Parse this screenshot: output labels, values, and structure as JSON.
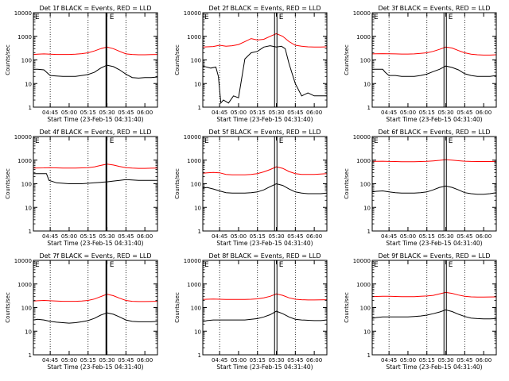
{
  "colors": {
    "events": "#000000",
    "lld": "#ff0000",
    "axes": "#000000",
    "background": "#ffffff"
  },
  "shared": {
    "ylabel": "Counts/sec",
    "xlabel": "Start Time (23-Feb-15 04:31:40)",
    "x_tick_labels": [
      "04:45",
      "05:00",
      "05:15",
      "05:30",
      "05:45",
      "06:00"
    ],
    "x_tick_minutes": [
      45,
      60,
      75,
      90,
      105,
      120
    ],
    "x_range_minutes": [
      31.67,
      130
    ],
    "y_tick_labels": [
      "1",
      "10",
      "100",
      "1000",
      "10000"
    ],
    "y_range": [
      1,
      10000
    ],
    "y_scale": "log",
    "vertical_dotted_lines_minutes": [
      45,
      75,
      105
    ],
    "corner_marker_left": "E",
    "corner_marker_right": "E"
  },
  "chart_data": [
    {
      "type": "line",
      "title": "Det 1f BLACK = Events, RED = LLD",
      "ylim": [
        1,
        10000
      ],
      "yscale": "log",
      "vlines": [
        {
          "x": 89.5,
          "style": "solid-thick"
        }
      ],
      "series": [
        {
          "name": "Events",
          "color": "#000000",
          "x": [
            31.7,
            35,
            40,
            45,
            50,
            55,
            60,
            65,
            70,
            75,
            80,
            85,
            90,
            95,
            100,
            105,
            110,
            115,
            120,
            125,
            130
          ],
          "values": [
            40,
            40,
            38,
            22,
            21,
            20,
            20,
            20,
            22,
            24,
            30,
            45,
            60,
            52,
            38,
            25,
            18,
            17,
            18,
            18,
            19
          ]
        },
        {
          "name": "LLD",
          "color": "#ff0000",
          "x": [
            31.7,
            35,
            40,
            45,
            50,
            55,
            60,
            65,
            70,
            75,
            80,
            85,
            90,
            95,
            100,
            105,
            110,
            115,
            120,
            125,
            130
          ],
          "values": [
            170,
            175,
            180,
            175,
            170,
            170,
            170,
            175,
            185,
            200,
            240,
            300,
            350,
            300,
            230,
            180,
            170,
            165,
            165,
            168,
            170
          ]
        }
      ]
    },
    {
      "type": "line",
      "title": "Det 2f BLACK = Events, RED = LLD",
      "ylim": [
        1,
        10000
      ],
      "yscale": "log",
      "vlines": [
        {
          "x": 89.5,
          "style": "double"
        }
      ],
      "series": [
        {
          "name": "Events",
          "color": "#000000",
          "x": [
            31.7,
            38,
            42,
            44,
            46,
            48,
            52,
            56,
            60,
            65,
            70,
            75,
            80,
            85,
            90,
            94,
            97,
            100,
            105,
            110,
            115,
            120,
            125,
            130
          ],
          "values": [
            55,
            45,
            50,
            20,
            1.5,
            2,
            1.5,
            3,
            2.5,
            110,
            200,
            230,
            350,
            400,
            350,
            380,
            300,
            70,
            10,
            3,
            4,
            3,
            3,
            3
          ]
        },
        {
          "name": "LLD",
          "color": "#ff0000",
          "x": [
            31.7,
            35,
            40,
            45,
            50,
            55,
            60,
            65,
            70,
            75,
            80,
            85,
            90,
            95,
            100,
            105,
            110,
            115,
            120,
            125,
            130
          ],
          "values": [
            350,
            360,
            370,
            420,
            380,
            400,
            450,
            600,
            800,
            700,
            750,
            1000,
            1300,
            1000,
            600,
            420,
            380,
            360,
            350,
            350,
            360
          ]
        }
      ]
    },
    {
      "type": "line",
      "title": "Det 3f BLACK = Events, RED = LLD",
      "ylim": [
        1,
        10000
      ],
      "yscale": "log",
      "vlines": [
        {
          "x": 89.5,
          "style": "double"
        }
      ],
      "series": [
        {
          "name": "Events",
          "color": "#000000",
          "x": [
            31.7,
            35,
            40,
            42,
            45,
            50,
            55,
            60,
            65,
            70,
            75,
            80,
            85,
            90,
            95,
            100,
            105,
            110,
            115,
            120,
            125,
            130
          ],
          "values": [
            40,
            40,
            40,
            30,
            22,
            22,
            20,
            20,
            20,
            22,
            25,
            32,
            40,
            55,
            48,
            38,
            26,
            22,
            20,
            20,
            20,
            22
          ]
        },
        {
          "name": "LLD",
          "color": "#ff0000",
          "x": [
            31.7,
            35,
            40,
            45,
            50,
            55,
            60,
            65,
            70,
            75,
            80,
            85,
            90,
            95,
            100,
            105,
            110,
            115,
            120,
            125,
            130
          ],
          "values": [
            180,
            182,
            185,
            182,
            180,
            178,
            178,
            180,
            190,
            200,
            230,
            280,
            350,
            320,
            250,
            200,
            175,
            165,
            160,
            160,
            165
          ]
        }
      ]
    },
    {
      "type": "line",
      "title": "Det 4f BLACK = Events, RED = LLD",
      "ylim": [
        1,
        10000
      ],
      "yscale": "log",
      "vlines": [
        {
          "x": 89.5,
          "style": "solid-thick"
        }
      ],
      "series": [
        {
          "name": "Events",
          "color": "#000000",
          "x": [
            31.7,
            35,
            40,
            42,
            44,
            50,
            55,
            60,
            65,
            70,
            75,
            80,
            85,
            90,
            95,
            100,
            105,
            110,
            115,
            120,
            125,
            130
          ],
          "values": [
            270,
            270,
            270,
            270,
            140,
            110,
            105,
            100,
            100,
            100,
            105,
            110,
            115,
            120,
            130,
            140,
            150,
            145,
            140,
            140,
            138,
            140
          ]
        },
        {
          "name": "LLD",
          "color": "#ff0000",
          "x": [
            31.7,
            35,
            40,
            45,
            50,
            55,
            60,
            65,
            70,
            75,
            80,
            85,
            90,
            95,
            100,
            105,
            110,
            115,
            120,
            125,
            130
          ],
          "values": [
            460,
            465,
            470,
            480,
            470,
            460,
            460,
            460,
            470,
            480,
            520,
            600,
            680,
            620,
            540,
            480,
            460,
            450,
            450,
            455,
            460
          ]
        }
      ]
    },
    {
      "type": "line",
      "title": "Det 5f BLACK = Events, RED = LLD",
      "ylim": [
        1,
        10000
      ],
      "yscale": "log",
      "vlines": [
        {
          "x": 89.5,
          "style": "double"
        }
      ],
      "series": [
        {
          "name": "Events",
          "color": "#000000",
          "x": [
            31.7,
            35,
            40,
            45,
            50,
            55,
            60,
            65,
            70,
            75,
            80,
            85,
            90,
            95,
            100,
            105,
            110,
            115,
            120,
            125,
            130
          ],
          "values": [
            65,
            70,
            60,
            50,
            42,
            40,
            40,
            40,
            42,
            45,
            55,
            75,
            100,
            85,
            60,
            45,
            40,
            38,
            38,
            38,
            40
          ]
        },
        {
          "name": "LLD",
          "color": "#ff0000",
          "x": [
            31.7,
            35,
            40,
            45,
            50,
            55,
            60,
            65,
            70,
            75,
            80,
            85,
            90,
            95,
            100,
            105,
            110,
            115,
            120,
            125,
            130
          ],
          "values": [
            280,
            290,
            300,
            290,
            250,
            240,
            240,
            240,
            250,
            270,
            320,
            400,
            520,
            450,
            330,
            270,
            250,
            250,
            250,
            260,
            270
          ]
        }
      ]
    },
    {
      "type": "line",
      "title": "Det 6f BLACK = Events, RED = LLD",
      "ylim": [
        1,
        10000
      ],
      "yscale": "log",
      "vlines": [
        {
          "x": 89.5,
          "style": "double"
        }
      ],
      "series": [
        {
          "name": "Events",
          "color": "#000000",
          "x": [
            31.7,
            35,
            40,
            45,
            50,
            55,
            60,
            65,
            70,
            75,
            80,
            85,
            90,
            95,
            100,
            105,
            110,
            115,
            120,
            125,
            130
          ],
          "values": [
            45,
            48,
            50,
            45,
            42,
            40,
            40,
            40,
            42,
            45,
            55,
            70,
            80,
            70,
            55,
            42,
            38,
            36,
            36,
            38,
            42
          ]
        },
        {
          "name": "LLD",
          "color": "#ff0000",
          "x": [
            31.7,
            35,
            40,
            45,
            50,
            55,
            60,
            65,
            70,
            75,
            80,
            85,
            90,
            95,
            100,
            105,
            110,
            115,
            120,
            125,
            130
          ],
          "values": [
            880,
            890,
            900,
            880,
            870,
            860,
            860,
            860,
            870,
            890,
            930,
            980,
            1050,
            1000,
            940,
            900,
            880,
            870,
            870,
            875,
            880
          ]
        }
      ]
    },
    {
      "type": "line",
      "title": "Det 7f BLACK = Events, RED = LLD",
      "ylim": [
        1,
        10000
      ],
      "yscale": "log",
      "vlines": [
        {
          "x": 89.5,
          "style": "solid-thick"
        }
      ],
      "series": [
        {
          "name": "Events",
          "color": "#000000",
          "x": [
            31.7,
            35,
            40,
            45,
            50,
            55,
            60,
            65,
            70,
            75,
            80,
            85,
            90,
            95,
            100,
            105,
            110,
            115,
            120,
            125,
            130
          ],
          "values": [
            30,
            32,
            30,
            26,
            24,
            23,
            22,
            23,
            25,
            28,
            35,
            48,
            60,
            52,
            40,
            30,
            26,
            25,
            25,
            25,
            26
          ]
        },
        {
          "name": "LLD",
          "color": "#ff0000",
          "x": [
            31.7,
            35,
            40,
            45,
            50,
            55,
            60,
            65,
            70,
            75,
            80,
            85,
            90,
            95,
            100,
            105,
            110,
            115,
            120,
            125,
            130
          ],
          "values": [
            190,
            195,
            200,
            195,
            190,
            185,
            185,
            185,
            190,
            200,
            230,
            290,
            370,
            320,
            250,
            200,
            185,
            180,
            180,
            182,
            185
          ]
        }
      ]
    },
    {
      "type": "line",
      "title": "Det 8f BLACK = Events, RED = LLD",
      "ylim": [
        1,
        10000
      ],
      "yscale": "log",
      "vlines": [
        {
          "x": 89.5,
          "style": "double"
        }
      ],
      "series": [
        {
          "name": "Events",
          "color": "#000000",
          "x": [
            31.7,
            35,
            40,
            45,
            50,
            55,
            60,
            65,
            70,
            75,
            80,
            85,
            90,
            95,
            100,
            105,
            110,
            115,
            120,
            125,
            130
          ],
          "values": [
            25,
            28,
            30,
            30,
            30,
            30,
            30,
            30,
            32,
            34,
            40,
            50,
            70,
            55,
            40,
            32,
            30,
            29,
            28,
            28,
            30
          ]
        },
        {
          "name": "LLD",
          "color": "#ff0000",
          "x": [
            31.7,
            35,
            40,
            45,
            50,
            55,
            60,
            65,
            70,
            75,
            80,
            85,
            90,
            95,
            100,
            105,
            110,
            115,
            120,
            125,
            130
          ],
          "values": [
            220,
            225,
            230,
            225,
            220,
            220,
            220,
            220,
            225,
            235,
            260,
            300,
            380,
            330,
            260,
            225,
            215,
            210,
            210,
            212,
            215
          ]
        }
      ]
    },
    {
      "type": "line",
      "title": "Det 9f BLACK = Events, RED = LLD",
      "ylim": [
        1,
        10000
      ],
      "yscale": "log",
      "vlines": [
        {
          "x": 89.5,
          "style": "double"
        }
      ],
      "series": [
        {
          "name": "Events",
          "color": "#000000",
          "x": [
            31.7,
            35,
            40,
            45,
            50,
            55,
            60,
            65,
            70,
            75,
            80,
            85,
            90,
            95,
            100,
            105,
            110,
            115,
            120,
            125,
            130
          ],
          "values": [
            35,
            38,
            40,
            40,
            40,
            40,
            40,
            42,
            44,
            48,
            55,
            65,
            80,
            68,
            52,
            42,
            36,
            34,
            33,
            33,
            34
          ]
        },
        {
          "name": "LLD",
          "color": "#ff0000",
          "x": [
            31.7,
            35,
            40,
            45,
            50,
            55,
            60,
            65,
            70,
            75,
            80,
            85,
            90,
            95,
            100,
            105,
            110,
            115,
            120,
            125,
            130
          ],
          "values": [
            290,
            295,
            300,
            300,
            295,
            290,
            290,
            290,
            300,
            310,
            330,
            380,
            440,
            400,
            340,
            300,
            285,
            280,
            280,
            282,
            285
          ]
        }
      ]
    }
  ]
}
